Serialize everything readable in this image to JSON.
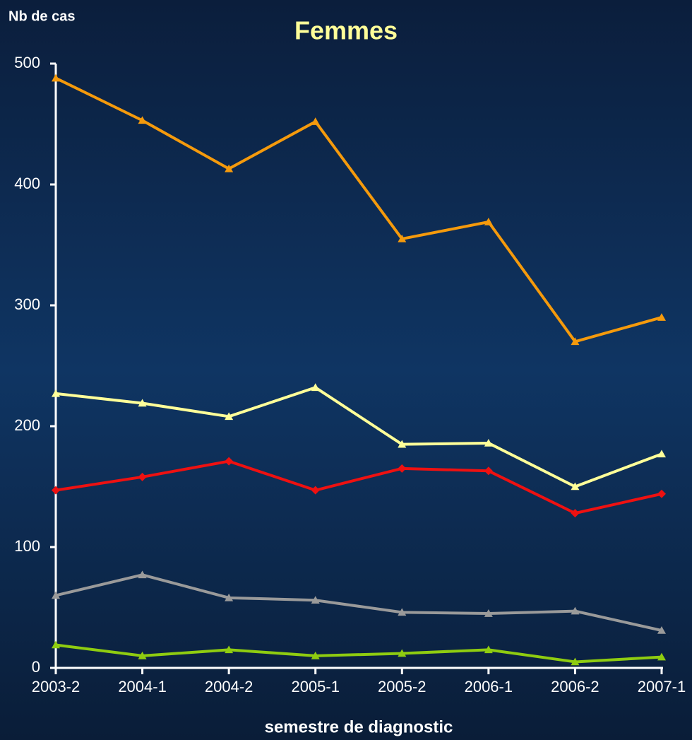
{
  "chart_data": {
    "type": "line",
    "title": "Femmes",
    "y_label": "Nb de cas",
    "x_label": "semestre de diagnostic",
    "categories": [
      "2003-2",
      "2004-1",
      "2004-2",
      "2005-1",
      "2005-2",
      "2006-1",
      "2006-2",
      "2007-1"
    ],
    "series": [
      {
        "color": "#f59a0c",
        "marker": "triangle",
        "values": [
          488,
          453,
          413,
          452,
          355,
          369,
          270,
          290
        ]
      },
      {
        "color": "#ffff99",
        "marker": "triangle",
        "values": [
          227,
          219,
          208,
          232,
          185,
          186,
          150,
          177
        ]
      },
      {
        "color": "#ee1111",
        "marker": "diamond",
        "values": [
          147,
          158,
          171,
          147,
          165,
          163,
          128,
          144
        ]
      },
      {
        "color": "#9a9a9a",
        "marker": "triangle",
        "values": [
          60,
          77,
          58,
          56,
          46,
          45,
          47,
          31
        ]
      },
      {
        "color": "#8fcc10",
        "marker": "triangle",
        "values": [
          19,
          10,
          15,
          10,
          12,
          15,
          5,
          9
        ]
      }
    ],
    "ylim": [
      0,
      500
    ],
    "yticks": [
      0,
      100,
      200,
      300,
      400,
      500
    ],
    "grid": false
  }
}
